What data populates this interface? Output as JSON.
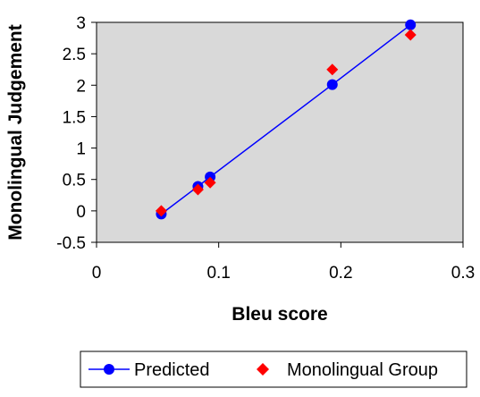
{
  "chart_data": {
    "type": "scatter",
    "title": "",
    "xlabel": "Bleu score",
    "ylabel": "Monolingual Judgement",
    "xlim": [
      0,
      0.3
    ],
    "ylim": [
      -0.5,
      3
    ],
    "x_ticks": [
      0,
      0.1,
      0.2,
      0.3
    ],
    "x_tick_labels": [
      "0",
      "0.1",
      "0.2",
      "0.3"
    ],
    "y_ticks": [
      -0.5,
      0,
      0.5,
      1,
      1.5,
      2,
      2.5,
      3
    ],
    "y_tick_labels": [
      "-0.5",
      "0",
      "0.5",
      "1",
      "1.5",
      "2",
      "2.5",
      "3"
    ],
    "grid": false,
    "plot_background": "#d9d9d9",
    "legend_position": "bottom",
    "series": [
      {
        "name": "Predicted",
        "style": "line-with-circle-markers",
        "color": "#0000ff",
        "x": [
          0.053,
          0.083,
          0.093,
          0.193,
          0.257
        ],
        "y": [
          -0.05,
          0.39,
          0.54,
          2.01,
          2.96
        ]
      },
      {
        "name": "Monolingual Group",
        "style": "diamond-markers",
        "color": "#ff0000",
        "x": [
          0.053,
          0.083,
          0.093,
          0.193,
          0.257
        ],
        "y": [
          0.0,
          0.34,
          0.45,
          2.25,
          2.8
        ]
      }
    ]
  }
}
